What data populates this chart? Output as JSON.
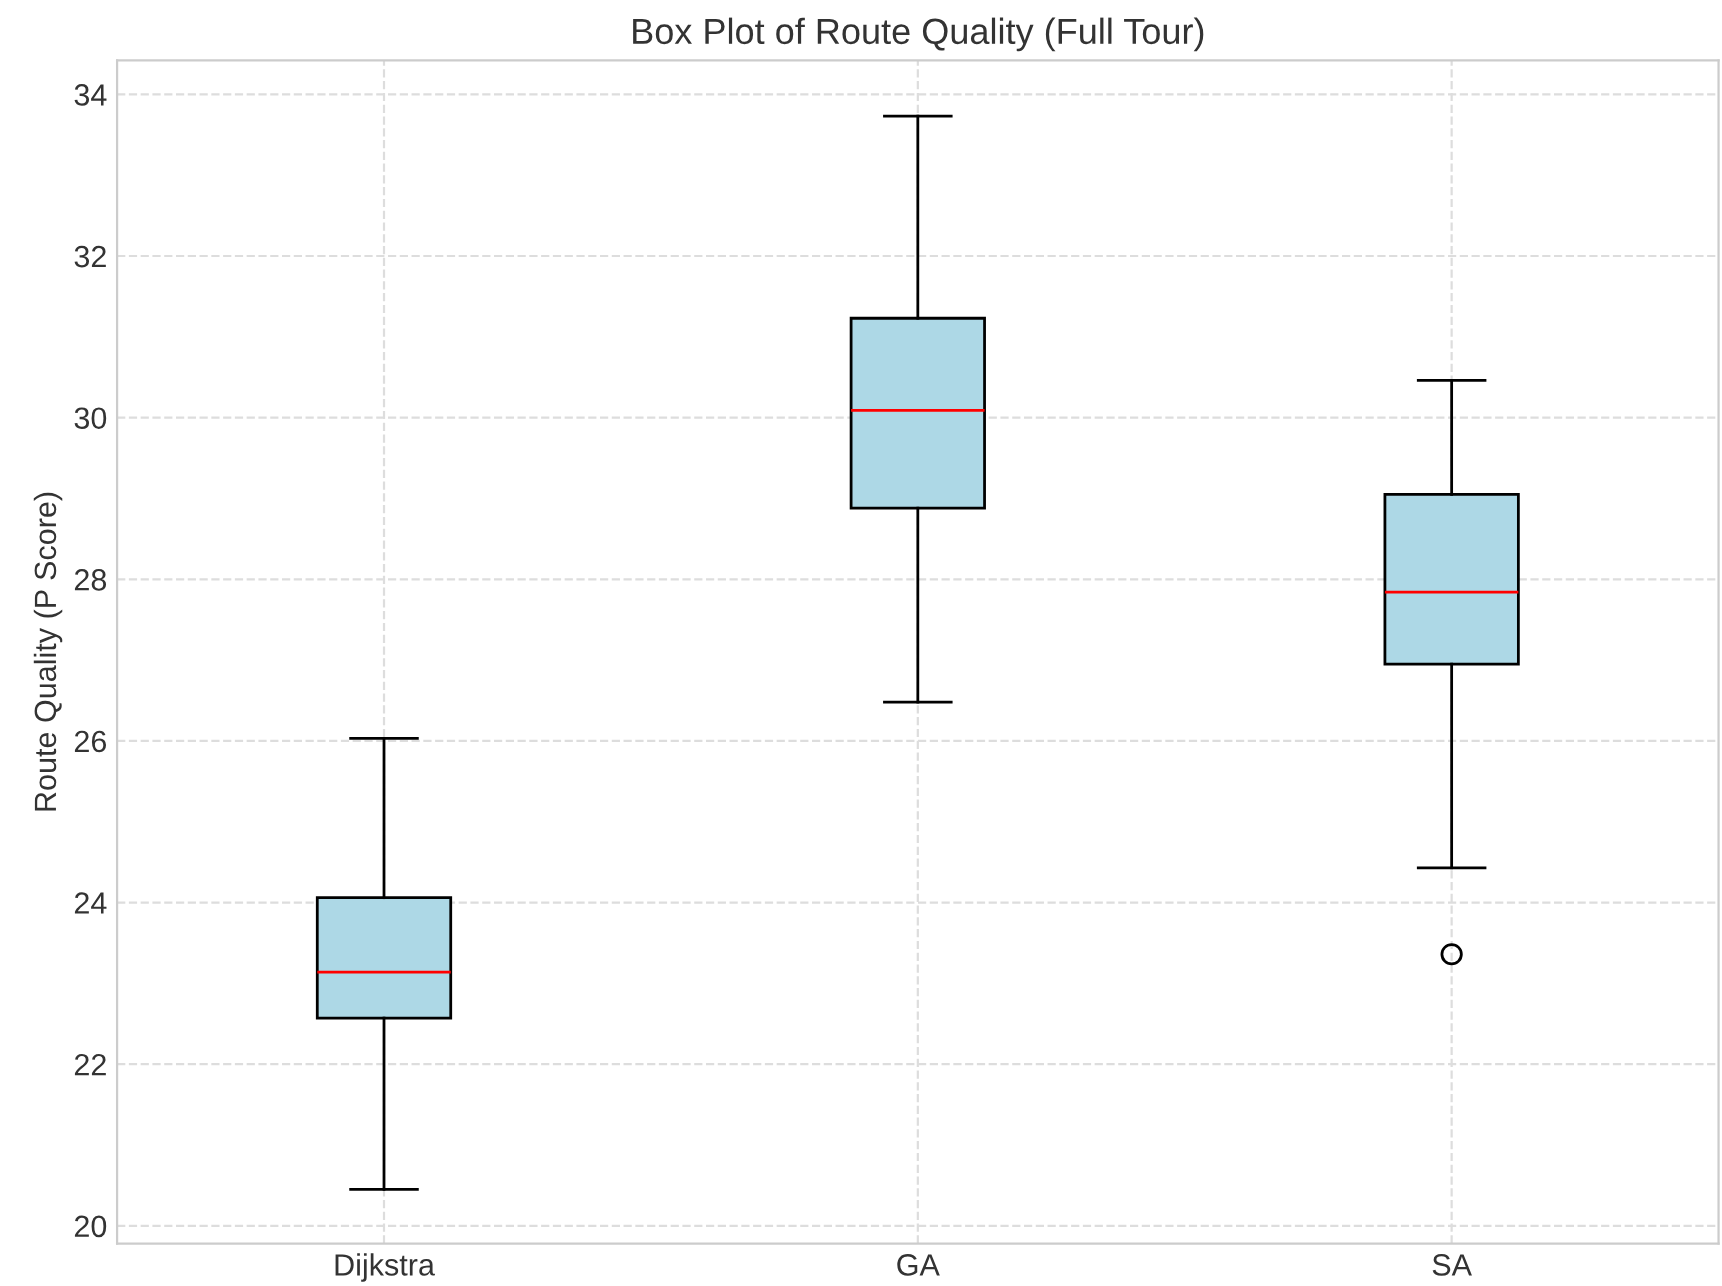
{
  "chart_data": {
    "type": "box",
    "title": "Box Plot of Route Quality (Full Tour)",
    "ylabel": "Route Quality (P Score)",
    "categories": [
      "Dijkstra",
      "GA",
      "SA"
    ],
    "boxes": [
      {
        "low": 20.45,
        "q1": 22.57,
        "median": 23.14,
        "q3": 24.06,
        "high": 26.03
      },
      {
        "low": 26.48,
        "q1": 28.88,
        "median": 30.09,
        "q3": 31.23,
        "high": 33.73
      },
      {
        "low": 24.43,
        "q1": 26.95,
        "median": 27.84,
        "q3": 29.05,
        "high": 30.46,
        "outliers": [
          23.36
        ]
      }
    ],
    "color": "#add8e6",
    "ylim": [
      19.78,
      34.42
    ],
    "yticks": [
      20,
      22,
      24,
      26,
      28,
      30,
      32,
      34
    ],
    "grid": true
  }
}
